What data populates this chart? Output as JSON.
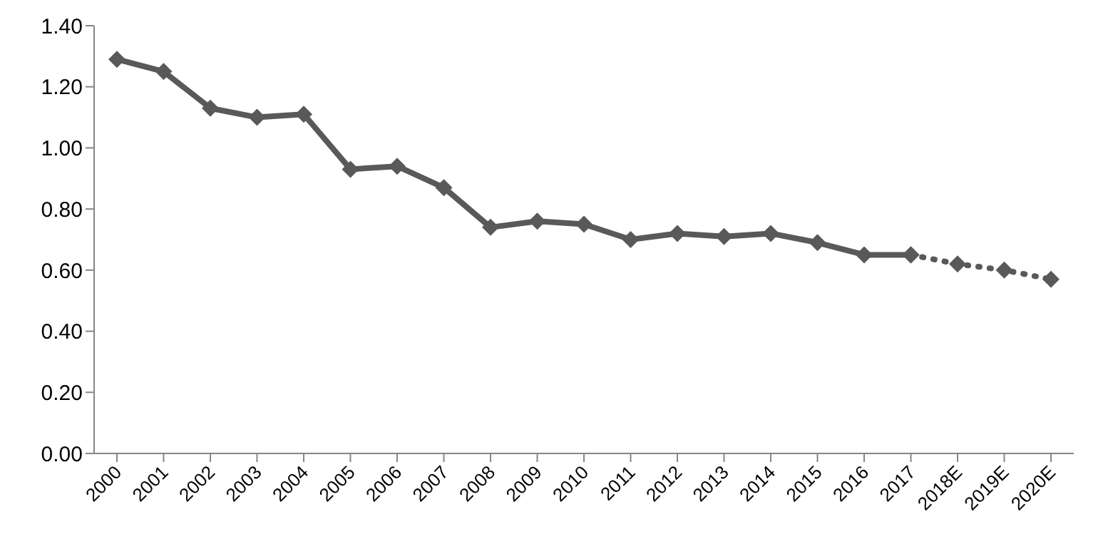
{
  "chart_data": {
    "type": "line",
    "categories": [
      "2000",
      "2001",
      "2002",
      "2003",
      "2004",
      "2005",
      "2006",
      "2007",
      "2008",
      "2009",
      "2010",
      "2011",
      "2012",
      "2013",
      "2014",
      "2015",
      "2016",
      "2017",
      "2018E",
      "2019E",
      "2020E"
    ],
    "series": [
      {
        "color": "#595959",
        "line_style": "solid",
        "values": [
          1.29,
          1.25,
          1.13,
          1.1,
          1.11,
          0.93,
          0.94,
          0.87,
          0.74,
          0.76,
          0.75,
          0.7,
          0.72,
          0.71,
          0.72,
          0.69,
          0.65,
          0.65,
          null,
          null,
          null
        ]
      },
      {
        "color": "#595959",
        "line_style": "dotted",
        "values": [
          null,
          null,
          null,
          null,
          null,
          null,
          null,
          null,
          null,
          null,
          null,
          null,
          null,
          null,
          null,
          null,
          null,
          0.65,
          0.62,
          0.6,
          0.57
        ]
      }
    ],
    "ylim": [
      0,
      1.4
    ],
    "yticks": [
      {
        "value": 0,
        "label": "0.00"
      },
      {
        "value": 0.2,
        "label": "0.20"
      },
      {
        "value": 0.4,
        "label": "0.40"
      },
      {
        "value": 0.6,
        "label": "0.60"
      },
      {
        "value": 0.8,
        "label": "0.80"
      },
      {
        "value": 1.0,
        "label": "1.00"
      },
      {
        "value": 1.2,
        "label": "1.20"
      },
      {
        "value": 1.4,
        "label": "1.40"
      }
    ],
    "marker": "diamond"
  }
}
